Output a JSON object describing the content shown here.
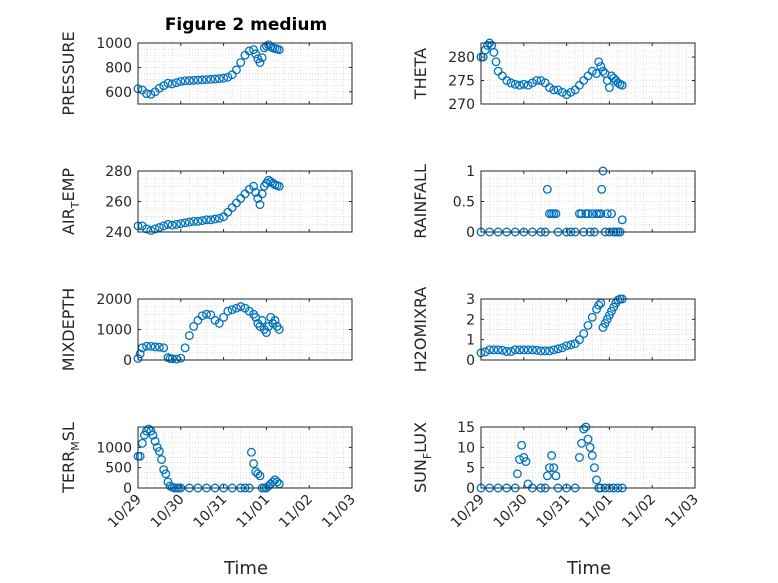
{
  "title": "Figure 2 medium",
  "xlabel": "Time",
  "marker_color": "#0072bd",
  "grid": true,
  "chart_data": [
    {
      "type": "scatter",
      "name": "pressure",
      "ylabel": "PRESSURE",
      "ylim": [
        500,
        1000
      ],
      "yticks": [
        600,
        800,
        1000
      ],
      "x": [
        0.0,
        0.1,
        0.2,
        0.3,
        0.4,
        0.5,
        0.6,
        0.7,
        0.8,
        0.9,
        1.0,
        1.1,
        1.2,
        1.3,
        1.4,
        1.5,
        1.6,
        1.7,
        1.8,
        1.9,
        2.0,
        2.1,
        2.2,
        2.3,
        2.4,
        2.5,
        2.6,
        2.7,
        2.75,
        2.8,
        2.85,
        2.9,
        2.95,
        3.0,
        3.05,
        3.1,
        3.15,
        3.2,
        3.25,
        3.3
      ],
      "y": [
        625,
        615,
        585,
        580,
        600,
        630,
        650,
        670,
        665,
        675,
        685,
        690,
        692,
        694,
        696,
        698,
        700,
        702,
        705,
        708,
        712,
        720,
        740,
        780,
        840,
        900,
        935,
        945,
        910,
        870,
        840,
        880,
        960,
        975,
        985,
        970,
        960,
        955,
        950,
        945
      ]
    },
    {
      "type": "scatter",
      "name": "theta",
      "ylabel": "THETA",
      "ylim": [
        270,
        283
      ],
      "yticks": [
        270,
        275,
        280
      ],
      "x": [
        0.0,
        0.05,
        0.1,
        0.15,
        0.2,
        0.25,
        0.3,
        0.35,
        0.4,
        0.5,
        0.6,
        0.7,
        0.8,
        0.9,
        1.0,
        1.1,
        1.2,
        1.3,
        1.4,
        1.5,
        1.6,
        1.7,
        1.8,
        1.9,
        2.0,
        2.1,
        2.2,
        2.3,
        2.4,
        2.5,
        2.6,
        2.7,
        2.75,
        2.8,
        2.85,
        2.9,
        2.95,
        3.0,
        3.05,
        3.1,
        3.15,
        3.2,
        3.25,
        3.3
      ],
      "y": [
        280,
        280,
        281.5,
        282.5,
        283,
        282.5,
        281,
        279,
        277,
        276,
        275,
        274.5,
        274.2,
        274,
        274.2,
        274,
        274.5,
        275,
        275,
        274.5,
        273.5,
        273,
        273,
        272.5,
        272,
        272.5,
        273,
        274,
        275,
        276,
        277,
        276.5,
        279,
        278,
        277,
        276.5,
        275,
        273.5,
        276,
        275.5,
        275,
        274.5,
        274.2,
        274
      ]
    },
    {
      "type": "scatter",
      "name": "air_temp",
      "ylabel": "AIR_TEMP",
      "ylim": [
        240,
        280
      ],
      "yticks": [
        240,
        260,
        280
      ],
      "x": [
        0.0,
        0.1,
        0.2,
        0.3,
        0.4,
        0.5,
        0.6,
        0.7,
        0.8,
        0.9,
        1.0,
        1.1,
        1.2,
        1.3,
        1.4,
        1.5,
        1.6,
        1.7,
        1.8,
        1.9,
        2.0,
        2.1,
        2.2,
        2.3,
        2.4,
        2.5,
        2.6,
        2.7,
        2.75,
        2.8,
        2.85,
        2.9,
        2.95,
        3.0,
        3.05,
        3.1,
        3.15,
        3.2,
        3.25,
        3.3
      ],
      "y": [
        244,
        244,
        242,
        241,
        242,
        243,
        244,
        245,
        244.5,
        245,
        245.5,
        246,
        246.5,
        247,
        247,
        247.5,
        248,
        248,
        248.5,
        249,
        250,
        253,
        256,
        259,
        262,
        265,
        268,
        270,
        266,
        262,
        258,
        265,
        270,
        272,
        274,
        273,
        272,
        271,
        270.5,
        270
      ]
    },
    {
      "type": "scatter",
      "name": "rainfall",
      "ylabel": "RAINFALL",
      "ylim": [
        0,
        1
      ],
      "yticks": [
        0,
        0.5,
        1
      ],
      "x": [
        0.0,
        0.2,
        0.4,
        0.6,
        0.8,
        1.0,
        1.2,
        1.4,
        1.5,
        1.55,
        1.6,
        1.65,
        1.7,
        1.75,
        1.8,
        2.0,
        2.1,
        2.2,
        2.3,
        2.35,
        2.4,
        2.45,
        2.5,
        2.55,
        2.6,
        2.65,
        2.7,
        2.75,
        2.8,
        2.82,
        2.85,
        2.9,
        2.95,
        3.0,
        3.05,
        3.1,
        3.15,
        3.2,
        3.25,
        3.3
      ],
      "y": [
        0,
        0,
        0,
        0,
        0,
        0,
        0,
        0,
        0,
        0.7,
        0.3,
        0.3,
        0.3,
        0.3,
        0,
        0,
        0,
        0,
        0.3,
        0.3,
        0,
        0.3,
        0.3,
        0,
        0.3,
        0,
        0.3,
        0.3,
        0.3,
        0.7,
        1.0,
        0,
        0.3,
        0,
        0.3,
        0,
        0,
        0,
        0,
        0.2
      ]
    },
    {
      "type": "scatter",
      "name": "mixdepth",
      "ylabel": "MIXDEPTH",
      "ylim": [
        0,
        2000
      ],
      "yticks": [
        0,
        1000,
        2000
      ],
      "x": [
        0.0,
        0.05,
        0.1,
        0.2,
        0.3,
        0.4,
        0.5,
        0.6,
        0.7,
        0.75,
        0.8,
        0.9,
        1.0,
        1.1,
        1.2,
        1.3,
        1.4,
        1.5,
        1.6,
        1.7,
        1.8,
        1.9,
        2.0,
        2.1,
        2.2,
        2.3,
        2.4,
        2.5,
        2.6,
        2.7,
        2.75,
        2.8,
        2.85,
        2.9,
        2.95,
        3.0,
        3.05,
        3.1,
        3.15,
        3.2,
        3.25,
        3.3
      ],
      "y": [
        50,
        200,
        400,
        450,
        450,
        430,
        420,
        400,
        80,
        50,
        40,
        30,
        60,
        400,
        800,
        1100,
        1300,
        1450,
        1500,
        1480,
        1300,
        1200,
        1400,
        1600,
        1650,
        1700,
        1750,
        1700,
        1600,
        1500,
        1400,
        1200,
        1100,
        1300,
        1000,
        900,
        1100,
        1400,
        1200,
        1300,
        1100,
        1000
      ]
    },
    {
      "type": "scatter",
      "name": "h2omixra",
      "ylabel": "H2OMIXRA",
      "ylim": [
        0,
        3
      ],
      "yticks": [
        0,
        1,
        2,
        3
      ],
      "x": [
        0.0,
        0.1,
        0.2,
        0.3,
        0.4,
        0.5,
        0.6,
        0.7,
        0.8,
        0.9,
        1.0,
        1.1,
        1.2,
        1.3,
        1.4,
        1.5,
        1.6,
        1.7,
        1.8,
        1.9,
        2.0,
        2.1,
        2.2,
        2.3,
        2.4,
        2.5,
        2.6,
        2.7,
        2.75,
        2.8,
        2.85,
        2.9,
        2.95,
        3.0,
        3.05,
        3.1,
        3.15,
        3.2,
        3.25,
        3.3
      ],
      "y": [
        0.35,
        0.4,
        0.5,
        0.5,
        0.5,
        0.48,
        0.42,
        0.42,
        0.5,
        0.5,
        0.5,
        0.5,
        0.5,
        0.48,
        0.45,
        0.45,
        0.45,
        0.5,
        0.55,
        0.6,
        0.7,
        0.75,
        0.8,
        1.0,
        1.3,
        1.7,
        2.1,
        2.5,
        2.7,
        2.8,
        1.6,
        1.8,
        2.0,
        2.2,
        2.4,
        2.6,
        2.8,
        2.95,
        3.0,
        3.0
      ]
    },
    {
      "type": "scatter",
      "name": "terr_msl",
      "ylabel": "TERR_MSL",
      "ylim": [
        0,
        1500
      ],
      "yticks": [
        0,
        500,
        1000
      ],
      "x": [
        0.0,
        0.05,
        0.1,
        0.15,
        0.2,
        0.25,
        0.3,
        0.35,
        0.4,
        0.45,
        0.5,
        0.55,
        0.6,
        0.65,
        0.7,
        0.75,
        0.8,
        0.85,
        0.9,
        0.95,
        1.0,
        1.2,
        1.4,
        1.6,
        1.8,
        2.0,
        2.2,
        2.4,
        2.5,
        2.6,
        2.65,
        2.7,
        2.75,
        2.8,
        2.85,
        2.9,
        2.95,
        3.0,
        3.05,
        3.1,
        3.15,
        3.2,
        3.25,
        3.3
      ],
      "y": [
        780,
        780,
        1100,
        1300,
        1400,
        1450,
        1400,
        1300,
        1150,
        1000,
        900,
        700,
        450,
        350,
        150,
        50,
        20,
        0,
        0,
        0,
        0,
        0,
        0,
        0,
        0,
        0,
        0,
        0,
        0,
        0,
        880,
        600,
        400,
        350,
        300,
        0,
        0,
        0,
        50,
        100,
        150,
        200,
        150,
        100
      ]
    },
    {
      "type": "scatter",
      "name": "sun_flux",
      "ylabel": "SUN_FLUX",
      "ylim": [
        0,
        15
      ],
      "yticks": [
        0,
        5,
        10,
        15
      ],
      "x": [
        0.0,
        0.2,
        0.4,
        0.6,
        0.8,
        0.85,
        0.9,
        0.95,
        1.0,
        1.05,
        1.1,
        1.2,
        1.4,
        1.5,
        1.55,
        1.6,
        1.65,
        1.7,
        1.75,
        1.8,
        2.0,
        2.2,
        2.3,
        2.35,
        2.4,
        2.45,
        2.5,
        2.55,
        2.6,
        2.65,
        2.7,
        2.75,
        2.8,
        2.9,
        3.0,
        3.1,
        3.2,
        3.3
      ],
      "y": [
        0,
        0,
        0,
        0,
        0,
        3.5,
        7,
        10.5,
        7.5,
        6.5,
        1,
        0,
        0,
        0,
        3,
        5,
        8,
        5,
        3,
        0,
        0,
        0,
        7.5,
        11,
        14.5,
        15,
        12,
        10,
        8,
        5,
        2,
        0,
        0,
        0,
        0,
        0,
        0,
        0
      ]
    }
  ],
  "x_axis": {
    "xlim": [
      0,
      5
    ],
    "ticks": [
      0,
      1,
      2,
      3,
      4,
      5
    ],
    "tick_labels": [
      "10/29",
      "10/30",
      "10/31",
      "11/01",
      "11/02",
      "11/03"
    ]
  }
}
